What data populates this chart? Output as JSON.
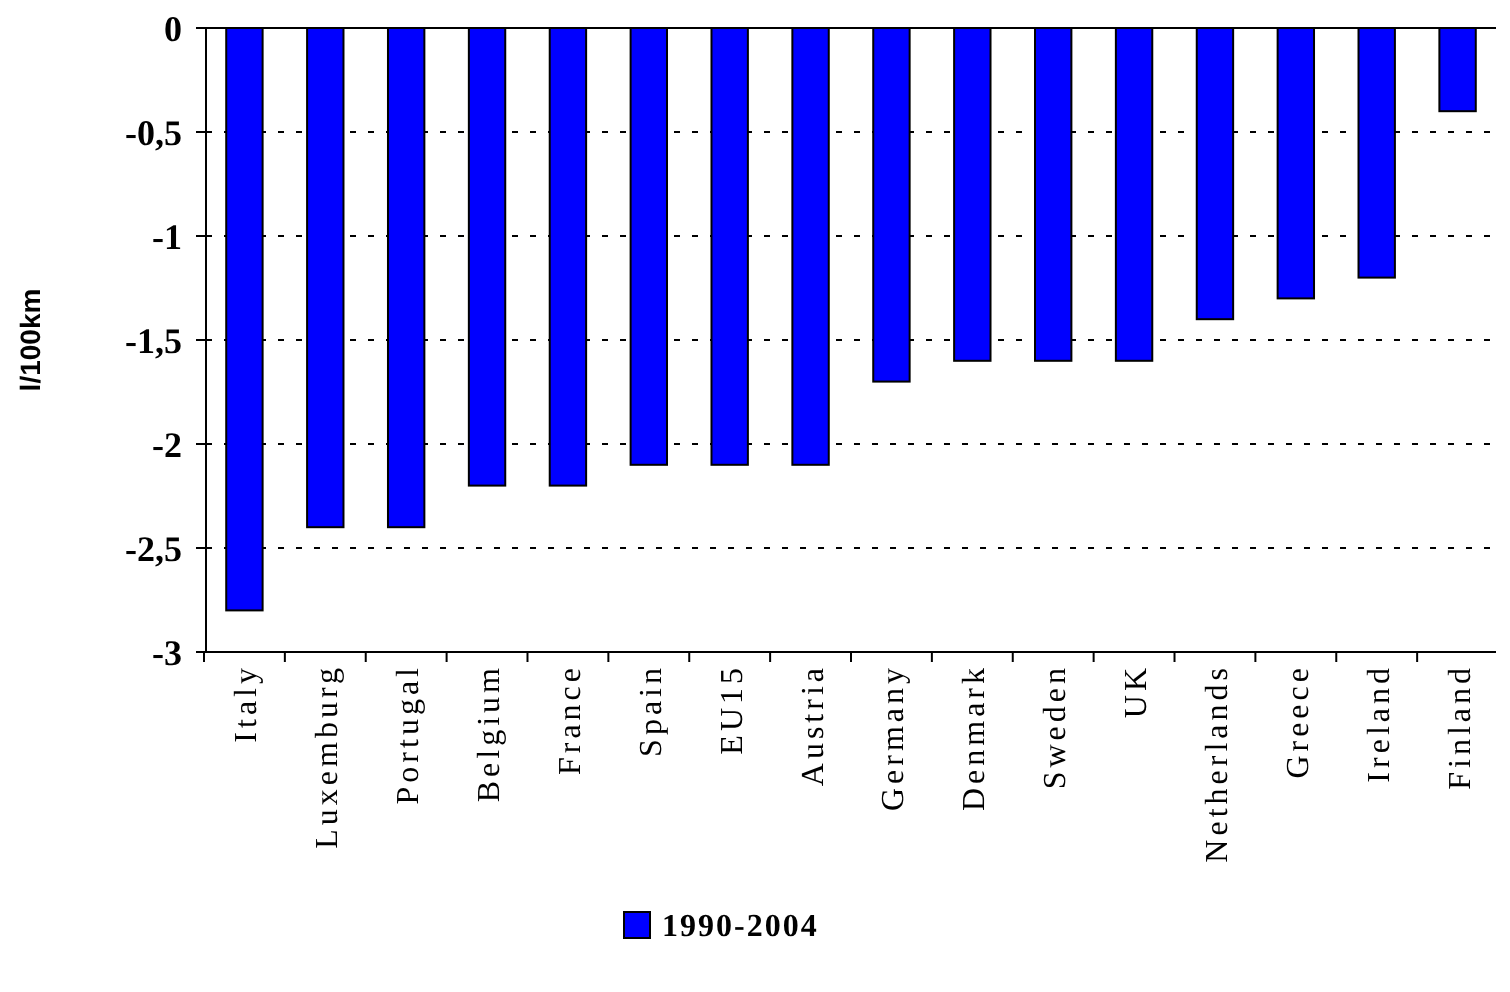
{
  "chart_data": {
    "type": "bar",
    "ylabel": "l/100km",
    "categories": [
      "Italy",
      "Luxemburg",
      "Portugal",
      "Belgium",
      "France",
      "Spain",
      "EU15",
      "Austria",
      "Germany",
      "Denmark",
      "Sweden",
      "UK",
      "Netherlands",
      "Greece",
      "Ireland",
      "Finland"
    ],
    "series": [
      {
        "name": "1990-2004",
        "color": "#0000ff",
        "values": [
          -2.8,
          -2.4,
          -2.4,
          -2.2,
          -2.2,
          -2.1,
          -2.1,
          -2.1,
          -1.7,
          -1.6,
          -1.6,
          -1.6,
          -1.4,
          -1.3,
          -1.2,
          -0.4
        ]
      }
    ],
    "ylim": [
      -3,
      0
    ],
    "yticks": [
      {
        "value": -3,
        "label": "-3"
      },
      {
        "value": -2.5,
        "label": "-2,5"
      },
      {
        "value": -2,
        "label": "-2"
      },
      {
        "value": -1.5,
        "label": "-1,5"
      },
      {
        "value": -1,
        "label": "-1"
      },
      {
        "value": -0.5,
        "label": "-0,5"
      },
      {
        "value": 0,
        "label": "0"
      }
    ],
    "grid": "y",
    "legend": "bottom"
  }
}
